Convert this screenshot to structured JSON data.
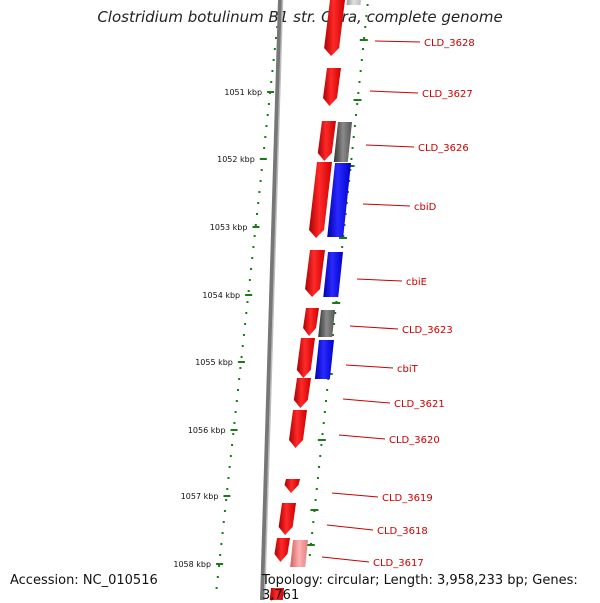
{
  "title": "Clostridium botulinum B1 str. Okra, complete genome",
  "footer": {
    "accession": "Accession: NC_010516",
    "summary": "Topology: circular; Length: 3,958,233 bp; Genes: 3,761"
  },
  "colors": {
    "forward_gene": "#ff0000",
    "reverse_gene_dark": "#555555",
    "reverse_gene_blue": "#0000ff",
    "tick_green": "#1a7a1a",
    "backbone": "#888888",
    "label_red": "#cc0000"
  },
  "ruler": [
    {
      "label": "1051 kbp"
    },
    {
      "label": "1052 kbp"
    },
    {
      "label": "1053 kbp"
    },
    {
      "label": "1054 kbp"
    },
    {
      "label": "1055 kbp"
    },
    {
      "label": "1056 kbp"
    },
    {
      "label": "1057 kbp"
    },
    {
      "label": "1058 kbp"
    }
  ],
  "genes": [
    {
      "label": "CLD_3628"
    },
    {
      "label": "CLD_3627"
    },
    {
      "label": "CLD_3626"
    },
    {
      "label": "cbiD"
    },
    {
      "label": "cbiE"
    },
    {
      "label": "CLD_3623"
    },
    {
      "label": "cbiT"
    },
    {
      "label": "CLD_3621"
    },
    {
      "label": "CLD_3620"
    },
    {
      "label": "CLD_3619"
    },
    {
      "label": "CLD_3618"
    },
    {
      "label": "CLD_3617"
    }
  ]
}
